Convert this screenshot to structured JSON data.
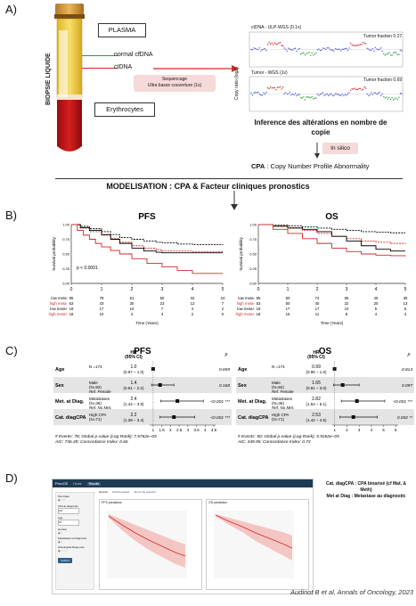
{
  "panelA": {
    "label": "A)",
    "tube_text": "BIOPSIE LIQUIDE",
    "plasma": "PLASMA",
    "normal_cfdna": "normal cfDNA",
    "ctdna": "ctDNA",
    "erythrocytes": "Erythrocytes",
    "seq_line1": "Sequencage",
    "seq_line2": "Ultra basse couverture (1x)",
    "cnv_title_top": "ctDNA - ULP-WGS (0.1x)",
    "cnv_title_bottom": "Tumor - WGS (1x)",
    "tf_top": "Tumor fraction 0.27",
    "tf_bottom": "Tumor fraction 0.69",
    "cnv_ylabel": "Copy ratio (log2)",
    "inference_line1": "Inference des altérations en nombre de",
    "inference_line2": "copie",
    "in_silico": "In silico",
    "cpa_bold": "CPA",
    "cpa_rest": " : Copy Number Profile Abnormality"
  },
  "modelisation": "MODELISATION : CPA & Facteur cliniques pronostics",
  "panelB": {
    "label": "B)",
    "pvalue": "p < 0.0001",
    "ylabel": "Survival probability",
    "xlabel": "Time (Years)",
    "xticks": [
      "0",
      "1",
      "2",
      "3",
      "4",
      "5"
    ],
    "yticks": [
      "1.00",
      "0.75",
      "0.50",
      "0.25",
      "0.00"
    ],
    "risk_labels": [
      "low meta-",
      "high meta-",
      "low meta+",
      "high meta+"
    ],
    "colors": {
      "low_meta_neg": "#000000",
      "high_meta_neg": "#d62828",
      "low_meta_pos": "#000000",
      "high_meta_pos": "#d62828"
    },
    "pfs": {
      "title": "PFS",
      "risk": [
        [
          "85",
          "78",
          "61",
          "50",
          "32",
          "24"
        ],
        [
          "53",
          "43",
          "30",
          "23",
          "12",
          "7"
        ],
        [
          "18",
          "17",
          "10",
          "7",
          "4",
          "2"
        ],
        [
          "18",
          "10",
          "4",
          "3",
          "2",
          "0"
        ]
      ]
    },
    "os": {
      "title": "OS",
      "risk": [
        [
          "85",
          "83",
          "74",
          "65",
          "45",
          "35"
        ],
        [
          "53",
          "50",
          "40",
          "32",
          "20",
          "13"
        ],
        [
          "18",
          "17",
          "17",
          "10",
          "5",
          "5"
        ],
        [
          "18",
          "15",
          "11",
          "8",
          "4",
          "3"
        ]
      ]
    }
  },
  "chart_data": [
    {
      "type": "line",
      "title": "PFS",
      "xlabel": "Time (Years)",
      "ylabel": "Survival probability",
      "xlim": [
        0,
        5
      ],
      "ylim": [
        0,
        1
      ],
      "series": [
        {
          "name": "low meta-",
          "style": "dashed",
          "color": "#000000",
          "x": [
            0,
            0.3,
            0.6,
            1,
            1.3,
            1.6,
            2,
            2.4,
            2.8,
            3,
            3.5,
            4,
            4.5,
            5
          ],
          "y": [
            1,
            0.97,
            0.93,
            0.88,
            0.83,
            0.78,
            0.75,
            0.72,
            0.7,
            0.69,
            0.67,
            0.66,
            0.66,
            0.65
          ]
        },
        {
          "name": "high meta-",
          "style": "dashed",
          "color": "#d62828",
          "x": [
            0,
            0.3,
            0.6,
            1,
            1.3,
            1.6,
            2,
            2.4,
            2.8,
            3,
            3.5,
            4,
            4.5,
            5
          ],
          "y": [
            1,
            0.94,
            0.88,
            0.82,
            0.76,
            0.7,
            0.64,
            0.6,
            0.57,
            0.55,
            0.55,
            0.54,
            0.54,
            0.54
          ]
        },
        {
          "name": "low meta+",
          "style": "solid",
          "color": "#000000",
          "x": [
            0,
            0.3,
            0.6,
            1,
            1.3,
            1.6,
            2,
            2.4,
            2.8,
            3,
            3.5,
            4,
            4.5,
            5
          ],
          "y": [
            1,
            0.95,
            0.9,
            0.83,
            0.75,
            0.68,
            0.6,
            0.55,
            0.53,
            0.52,
            0.52,
            0.52,
            0.52,
            0.52
          ]
        },
        {
          "name": "high meta+",
          "style": "solid",
          "color": "#d62828",
          "x": [
            0,
            0.2,
            0.4,
            0.6,
            0.8,
            1,
            1.3,
            1.6,
            2,
            2.5,
            3,
            3.5,
            4,
            4.5,
            5
          ],
          "y": [
            1,
            0.9,
            0.82,
            0.75,
            0.68,
            0.62,
            0.56,
            0.5,
            0.42,
            0.34,
            0.28,
            0.22,
            0.17,
            0.17,
            0.17
          ]
        }
      ]
    },
    {
      "type": "line",
      "title": "OS",
      "xlabel": "Time (Years)",
      "ylabel": "Survival probability",
      "xlim": [
        0,
        5
      ],
      "ylim": [
        0,
        1
      ],
      "series": [
        {
          "name": "low meta-",
          "style": "dashed",
          "color": "#000000",
          "x": [
            0,
            0.5,
            1,
            1.5,
            2,
            2.5,
            3,
            3.5,
            4,
            4.5,
            5
          ],
          "y": [
            1,
            0.99,
            0.98,
            0.96,
            0.94,
            0.92,
            0.9,
            0.88,
            0.87,
            0.86,
            0.86
          ]
        },
        {
          "name": "high meta-",
          "style": "dashed",
          "color": "#d62828",
          "x": [
            0,
            0.5,
            1,
            1.5,
            2,
            2.5,
            3,
            3.5,
            4,
            4.5,
            5
          ],
          "y": [
            1,
            0.98,
            0.95,
            0.9,
            0.85,
            0.8,
            0.76,
            0.72,
            0.7,
            0.68,
            0.67
          ]
        },
        {
          "name": "low meta+",
          "style": "solid",
          "color": "#000000",
          "x": [
            0,
            0.5,
            1,
            1.5,
            2,
            2.5,
            3,
            3.5,
            4,
            4.5,
            5
          ],
          "y": [
            1,
            0.97,
            0.94,
            0.92,
            0.88,
            0.8,
            0.72,
            0.64,
            0.58,
            0.55,
            0.55
          ]
        },
        {
          "name": "high meta+",
          "style": "solid",
          "color": "#d62828",
          "x": [
            0,
            0.5,
            1,
            1.5,
            2,
            2.5,
            3,
            3.5,
            4,
            4.5,
            5
          ],
          "y": [
            1,
            0.92,
            0.85,
            0.76,
            0.68,
            0.6,
            0.54,
            0.5,
            0.48,
            0.47,
            0.46
          ]
        }
      ]
    }
  ],
  "panelC": {
    "label": "C)",
    "pfs": {
      "title": "PFS",
      "hr_header": "HR",
      "ci_header": "(95% CI)",
      "p_header": "p",
      "rows": [
        {
          "var": "Age",
          "sub": "N =174",
          "hr": "1.0",
          "ci": "(0.97 – 1.0)",
          "p": "0.659",
          "est": 1.0,
          "lo": 0.97,
          "hi": 1.0,
          "shade": false
        },
        {
          "var": "Sex",
          "sub": "Male",
          "sub2": "(N=92)",
          "ref": "Ref. Female",
          "hr": "1.4",
          "ci": "(0.91 – 2.2)",
          "p": "0.168",
          "est": 1.4,
          "lo": 0.91,
          "hi": 2.2,
          "shade": true
        },
        {
          "var": "Met. at Diag.",
          "sub": "Metastases",
          "sub2": "(N=36)",
          "ref": "Ref. No Met.",
          "hr": "2.4",
          "ci": "(1.44 – 3.9)",
          "p": "<0.001 ***",
          "est": 2.4,
          "lo": 1.44,
          "hi": 3.9,
          "shade": false
        },
        {
          "var": "Cat. diagCPA",
          "sub": "High CPA",
          "sub2": "(N=71)",
          "hr": "2.2",
          "ci": "(1.38 – 3.4)",
          "p": "<0.001 ***",
          "est": 2.2,
          "lo": 1.38,
          "hi": 3.4,
          "shade": true
        }
      ],
      "axis": [
        "1",
        "1.5",
        "2",
        "2.5",
        "3",
        "3.5",
        "4",
        "4.5"
      ],
      "axis_values": [
        1,
        1.5,
        2,
        2.5,
        3,
        3.5,
        4,
        4.5
      ],
      "axis_range": [
        0.8,
        4.6
      ],
      "footer1": "# Events: 78; Global p-value (Log-Rank): 7.5762e−05",
      "footer2": "AIC: 736.49; Concordance Index: 0.66"
    },
    "os": {
      "title": "OS",
      "hr_header": "HR",
      "ci_header": "(95% CI)",
      "p_header": "p",
      "rows": [
        {
          "var": "Age",
          "sub": "N =174",
          "hr": "0.99",
          "ci": "(0.95 – 1.0)",
          "p": "0.814",
          "est": 0.99,
          "lo": 0.95,
          "hi": 1.0,
          "shade": false
        },
        {
          "var": "Sex",
          "sub": "Male",
          "sub2": "(N=92)",
          "ref": "Ref. Female",
          "hr": "1.65",
          "ci": "(0.91 – 3.0)",
          "p": "0.097",
          "est": 1.65,
          "lo": 0.91,
          "hi": 3.0,
          "shade": true
        },
        {
          "var": "Met. at Diag.",
          "sub": "Metastases",
          "sub2": "(N=36)",
          "ref": "Ref. No Met.",
          "hr": "2.82",
          "ci": "(1.54 – 5.1)",
          "p": "<0.001 ***",
          "est": 2.82,
          "lo": 1.54,
          "hi": 5.1,
          "shade": false
        },
        {
          "var": "Cat. diagCPA",
          "sub": "High CPA",
          "sub2": "(N=71)",
          "hr": "2.53",
          "ci": "(1.42 – 4.5)",
          "p": "0.002 **",
          "est": 2.53,
          "lo": 1.42,
          "hi": 4.5,
          "shade": true
        }
      ],
      "axis": [
        "1",
        "2",
        "3",
        "4",
        "5",
        "6"
      ],
      "axis_values": [
        1,
        2,
        3,
        4,
        5,
        6
      ],
      "axis_range": [
        0.8,
        6.2
      ],
      "footer1": "# Events: 50; Global p-value (Log-Rank): 5.9262e−05",
      "footer2": "AIC: 449.95; Concordance Index: 0.73"
    }
  },
  "panelD": {
    "label": "D)",
    "app_brand": "PronOS",
    "nav": [
      "Home",
      "Results"
    ],
    "tabs": [
      "Results",
      "Global dataset",
      "About the features"
    ],
    "left_panel": [
      "Test Data",
      "CPA at diagnosis",
      "Age",
      "Gender",
      "Metastases at diagnosis",
      "Histological Response"
    ],
    "cpa_value": "0.8",
    "age_value": "51",
    "submit": "Submit",
    "pfs_plot_title": "PFS prediction",
    "os_plot_title": "OS prediction",
    "legend_note_line1": "Cat. diagCPA : CPA binarisé (cf Mat. & Meth)",
    "legend_note_line2": "Met at Diag : Metastase au diagnostic",
    "citation": "Audinot B et al, Annals of Oncology, 2023"
  }
}
